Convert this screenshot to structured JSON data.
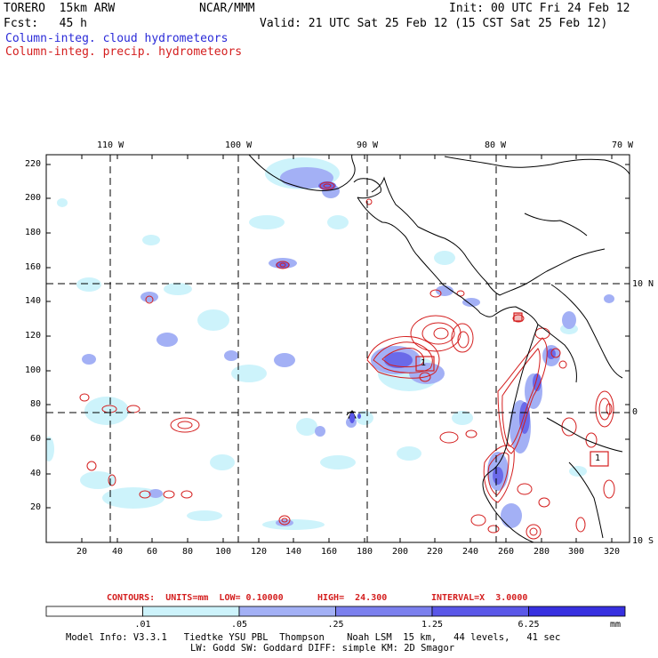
{
  "header": {
    "model": "TORERO  15km ARW",
    "org": "NCAR/MMM",
    "init": "Init: 00 UTC Fri 24 Feb 12",
    "fcst": "Fcst:   45 h",
    "valid": "Valid: 21 UTC Sat 25 Feb 12 (15 CST Sat 25 Feb 12)",
    "legend_cloud": "Column-integ. cloud hydrometeors",
    "legend_precip": "Column-integ. precip. hydrometeors"
  },
  "lon_labels": [
    "110 W",
    "100 W",
    "90 W",
    "80 W",
    "70 W"
  ],
  "lat_labels": [
    "10 N",
    "0",
    "10 S"
  ],
  "y_ticks": [
    "220",
    "200",
    "180",
    "160",
    "140",
    "120",
    "100",
    "80",
    "60",
    "40",
    "20"
  ],
  "x_ticks": [
    "20",
    "40",
    "60",
    "80",
    "100",
    "120",
    "140",
    "160",
    "180",
    "200",
    "220",
    "240",
    "260",
    "280",
    "300",
    "320"
  ],
  "contours": {
    "units": "CONTOURS:  UNITS=mm  LOW= 0.10000",
    "high": "HIGH=  24.300",
    "interval": "INTERVAL=X  3.0000"
  },
  "colorbar": {
    "labels": [
      ".01",
      ".05",
      ".25",
      "1.25",
      "6.25"
    ],
    "unit": "mm",
    "colors": [
      "#ffffff",
      "#cdf3fb",
      "#a3b0f5",
      "#7b80ee",
      "#5a57e8",
      "#3730e0"
    ]
  },
  "box_labels": [
    "1",
    "1"
  ],
  "footer": {
    "line1": "Model Info: V3.3.1   Tiedtke YSU PBL  Thompson    Noah LSM  15 km,   44 levels,   41 sec",
    "line2": "LW: Godd SW: Goddard DIFF: simple KM: 2D Smagor"
  },
  "colors": {
    "cloud_text": "#2b2bd8",
    "precip_text": "#d41e1e"
  }
}
